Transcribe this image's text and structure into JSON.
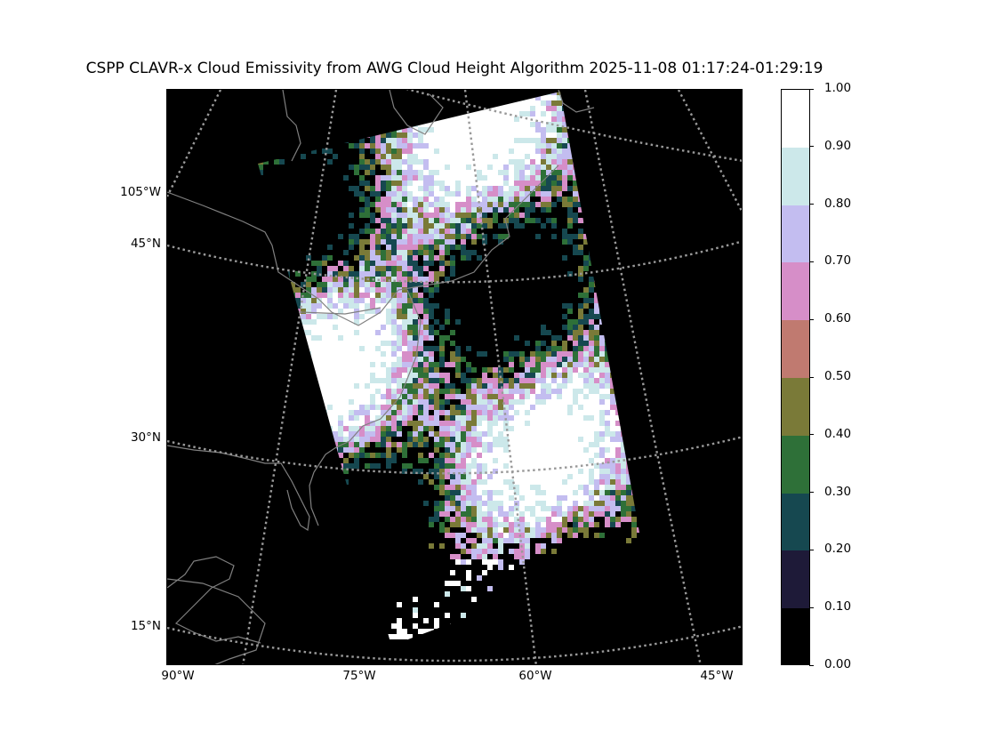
{
  "title": "CSPP CLAVR-x Cloud Emissivity from AWG Cloud Height Algorithm 2025-11-08 01:17:24-01:29:19",
  "map": {
    "lat_labels": [
      "45°N",
      "30°N",
      "15°N"
    ],
    "lon_labels_left": [
      "105°W"
    ],
    "lon_labels_bottom": [
      "90°W",
      "75°W",
      "60°W",
      "45°W"
    ],
    "gridline_color": "#999999",
    "coastline_color": "#808080",
    "background_color": "#000000"
  },
  "colorbar": {
    "ticks": [
      "1.00",
      "0.90",
      "0.80",
      "0.70",
      "0.60",
      "0.50",
      "0.40",
      "0.30",
      "0.20",
      "0.10",
      "0.00"
    ],
    "colors_top_to_bottom": [
      "#ffffff",
      "#cce8ea",
      "#c3bdf0",
      "#d68ec8",
      "#c07a70",
      "#7a7a38",
      "#2e7038",
      "#164850",
      "#1e1a38",
      "#000000"
    ]
  }
}
